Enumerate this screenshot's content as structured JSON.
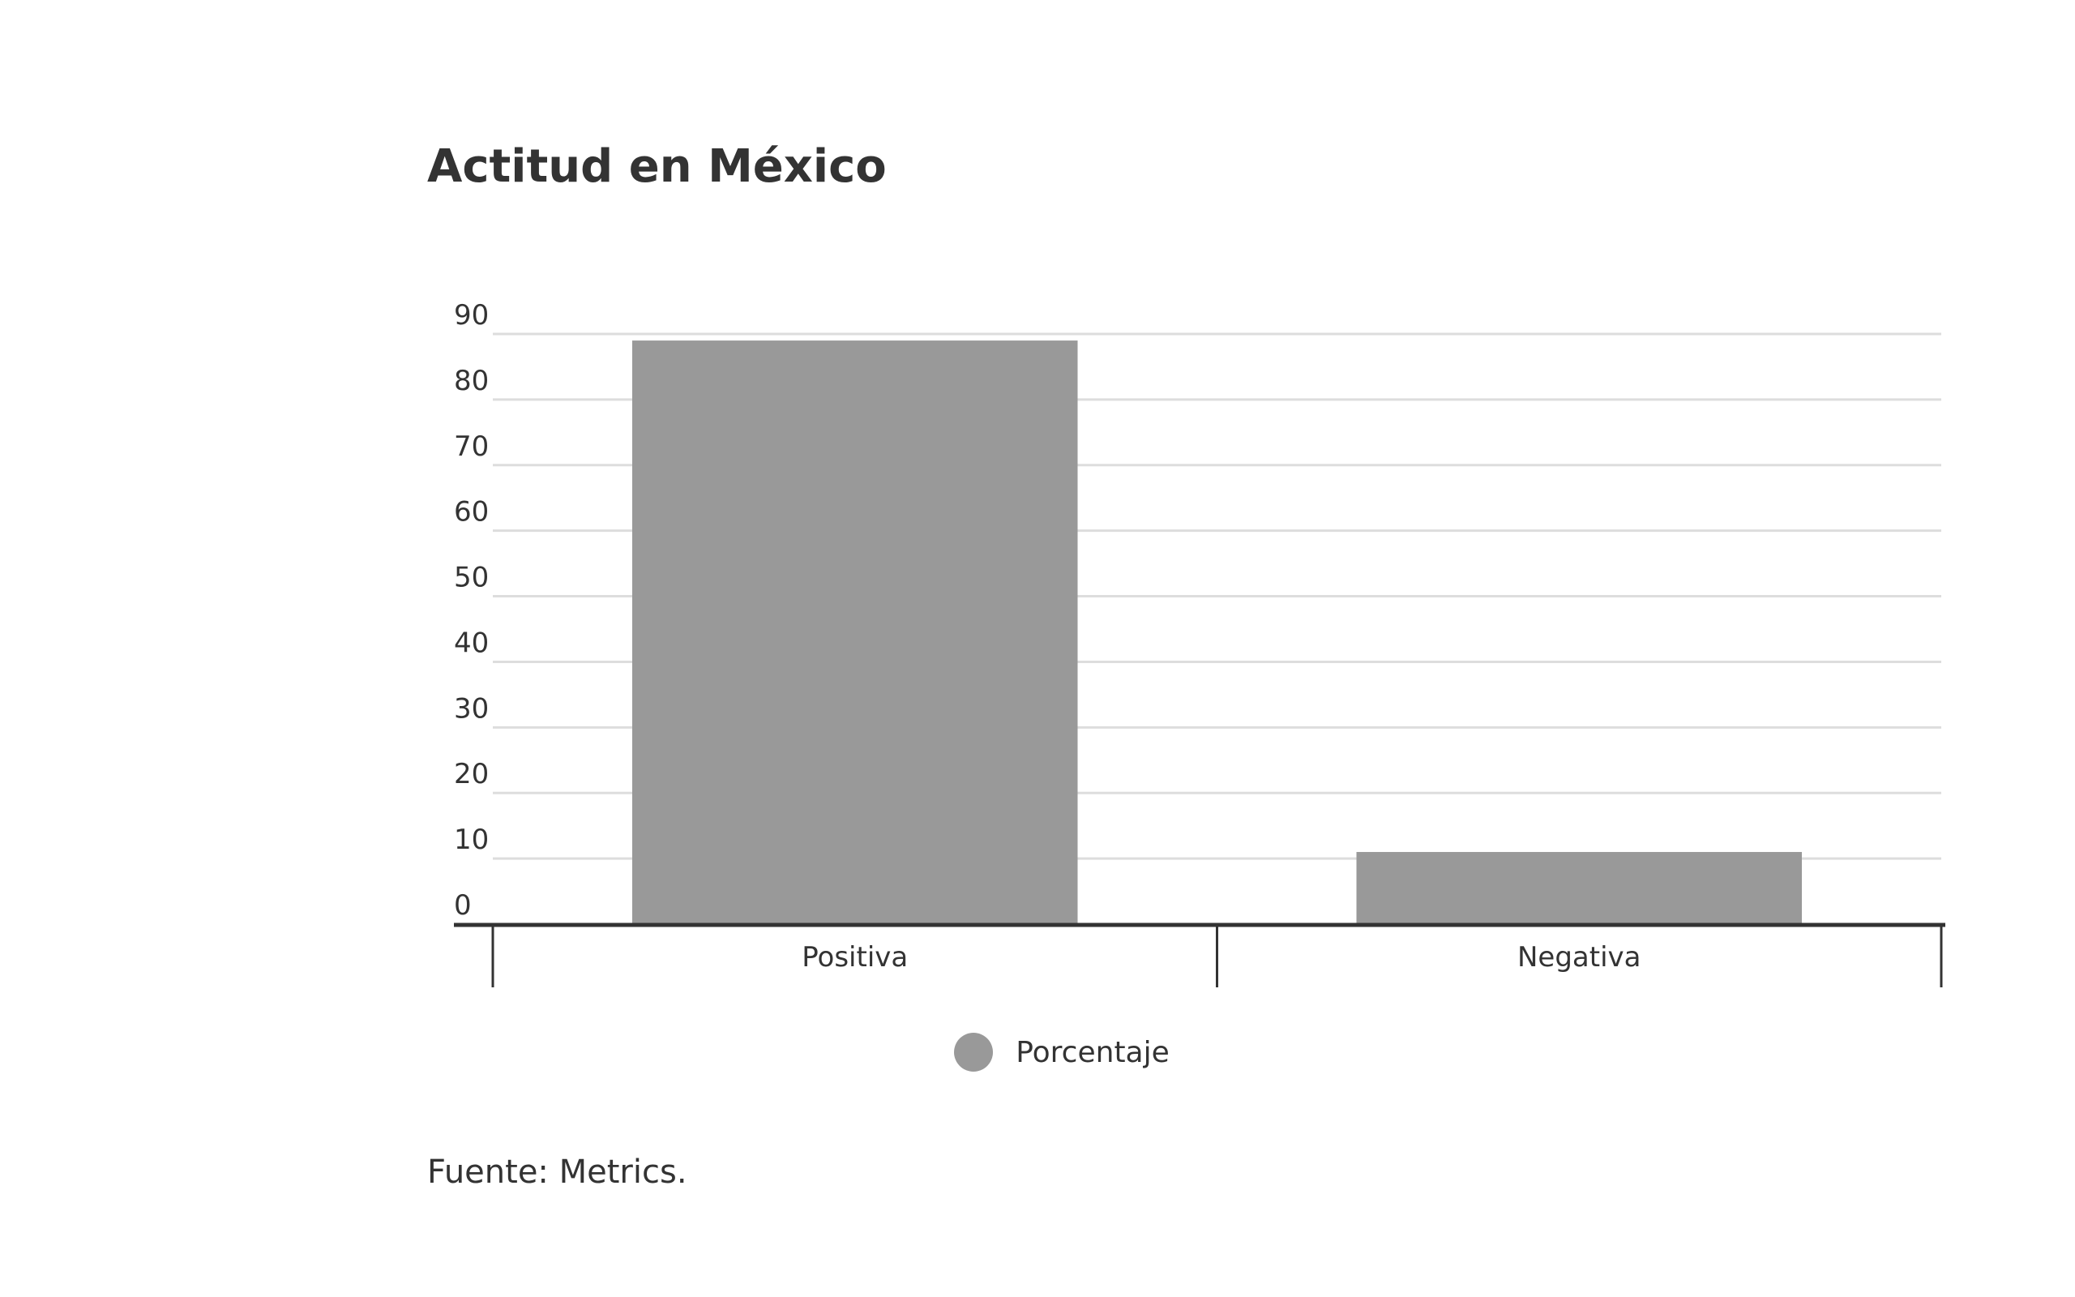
{
  "chart_data": {
    "type": "bar",
    "title": "Actitud en México",
    "categories": [
      "Positiva",
      "Negativa"
    ],
    "series": [
      {
        "name": "Porcentaje",
        "values": [
          89,
          11
        ],
        "color": "#999999"
      }
    ],
    "ylim": [
      0,
      90
    ],
    "yticks": [
      "0",
      "10",
      "20",
      "30",
      "40",
      "50",
      "60",
      "70",
      "80",
      "90"
    ],
    "grid": true,
    "legend_position": "bottom-center",
    "source": "Fuente: Metrics."
  }
}
